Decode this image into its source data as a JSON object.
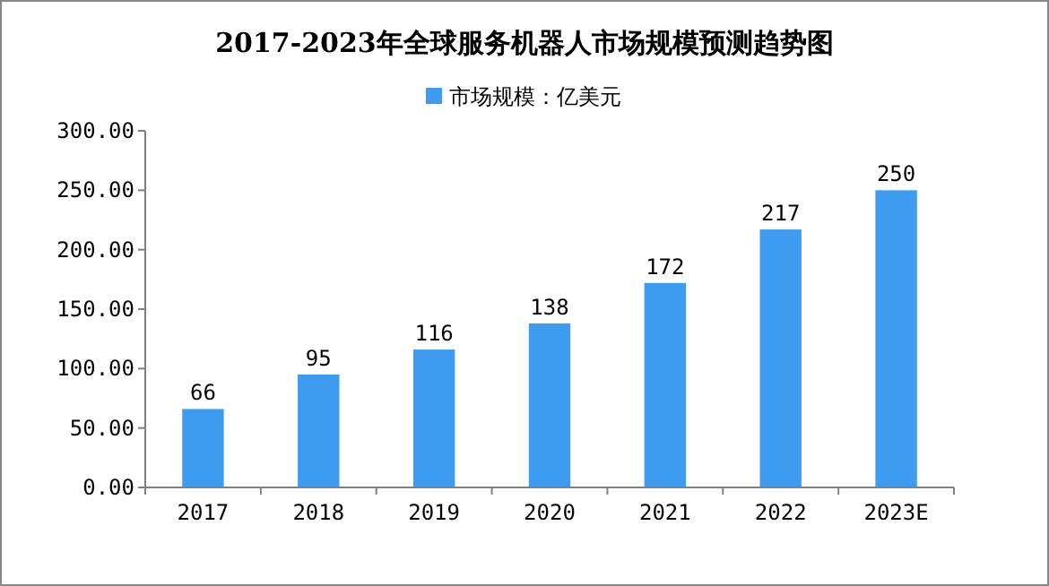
{
  "chart_data": {
    "type": "bar",
    "title": "2017-2023年全球服务机器人市场规模预测趋势图",
    "categories": [
      "2017",
      "2018",
      "2019",
      "2020",
      "2021",
      "2022",
      "2023E"
    ],
    "series": [
      {
        "name": "市场规模：亿美元",
        "color": "#3d9bf0",
        "values": [
          66,
          95,
          116,
          138,
          172,
          217,
          250
        ]
      }
    ],
    "ylim": [
      0,
      300
    ],
    "yticks": [
      {
        "value": 0,
        "label": "0.00"
      },
      {
        "value": 50,
        "label": "50.00"
      },
      {
        "value": 100,
        "label": "100.00"
      },
      {
        "value": 150,
        "label": "150.00"
      },
      {
        "value": 200,
        "label": "200.00"
      },
      {
        "value": 250,
        "label": "250.00"
      },
      {
        "value": 300,
        "label": "300.00"
      }
    ],
    "data_labels": true,
    "legend": "top",
    "grid": false
  }
}
